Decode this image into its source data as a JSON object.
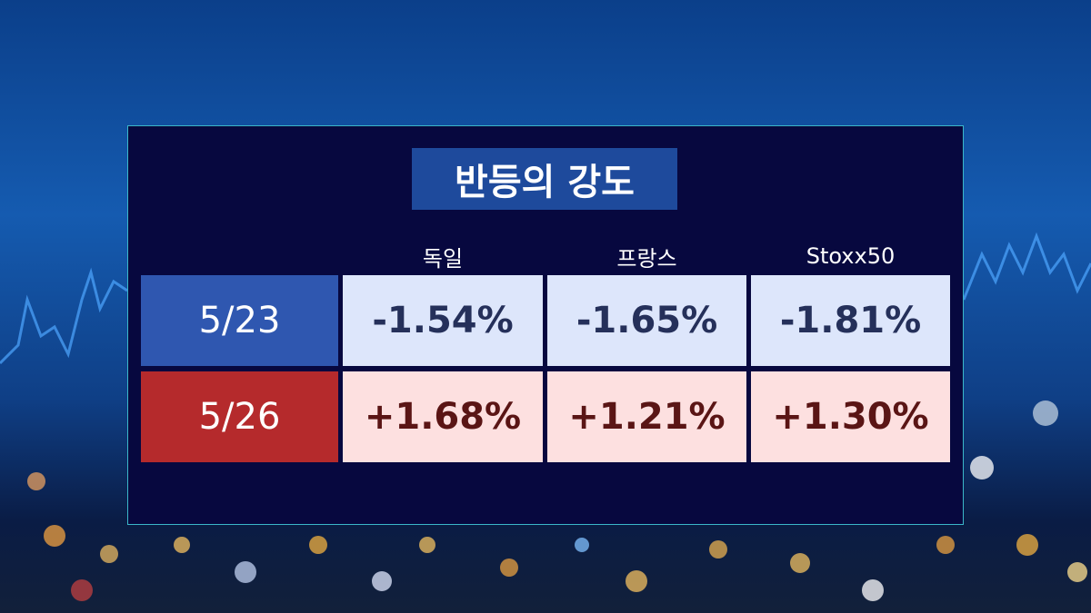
{
  "title": "반등의 강도",
  "table": {
    "header": [
      "독일",
      "프랑스",
      "Stoxx50"
    ],
    "rows": [
      [
        "5/23",
        "-1.54%",
        "-1.65%",
        "-1.81%"
      ],
      [
        "5/26",
        "+1.68%",
        "+1.21%",
        "+1.30%"
      ]
    ]
  }
}
